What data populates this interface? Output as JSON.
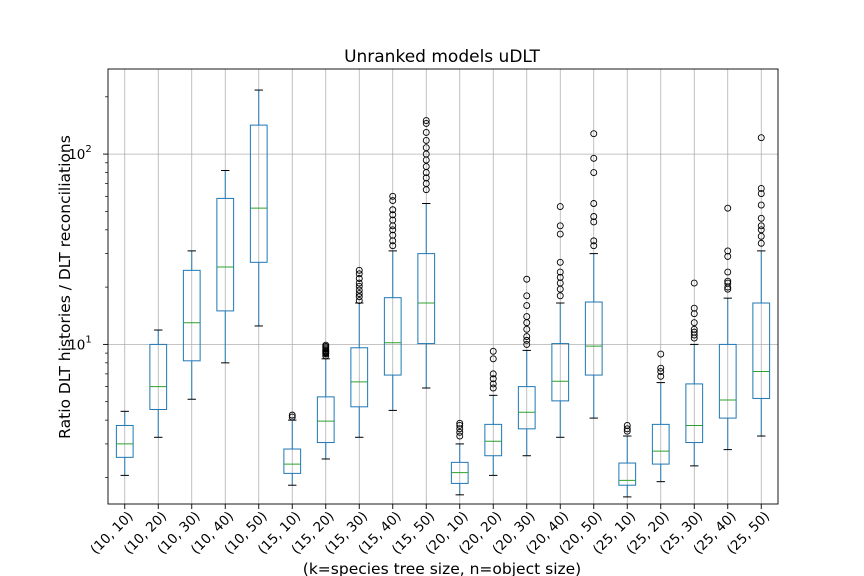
{
  "chart_data": {
    "type": "boxplot",
    "title": "Unranked models uDLT",
    "ylabel": "Ratio DLT histories / DLT reconciliations",
    "xlabel": "(k=species tree size, n=object size)",
    "yscale": "log",
    "ylim": [
      1.45,
      280
    ],
    "yticks": [
      {
        "value": 10,
        "base": "10",
        "exp": "1"
      },
      {
        "value": 100,
        "base": "10",
        "exp": "2"
      }
    ],
    "grid": true,
    "colors": {
      "box": "#1f77b4",
      "median": "#2ca02c",
      "grid": "#b0b0b0"
    },
    "categories": [
      "(10, 10)",
      "(10, 20)",
      "(10, 30)",
      "(10, 40)",
      "(10, 50)",
      "(15, 10)",
      "(15, 20)",
      "(15, 30)",
      "(15, 40)",
      "(15, 50)",
      "(20, 10)",
      "(20, 20)",
      "(20, 30)",
      "(20, 40)",
      "(20, 50)",
      "(25, 10)",
      "(25, 20)",
      "(25, 30)",
      "(25, 40)",
      "(25, 50)"
    ],
    "boxes": [
      {
        "whislo": 2.05,
        "q1": 2.55,
        "med": 3.0,
        "q3": 3.75,
        "whishi": 4.45,
        "fliers": []
      },
      {
        "whislo": 3.25,
        "q1": 4.55,
        "med": 6.0,
        "q3": 10.0,
        "whishi": 11.9,
        "fliers": []
      },
      {
        "whislo": 5.15,
        "q1": 8.2,
        "med": 13.0,
        "q3": 24.5,
        "whishi": 31.0,
        "fliers": []
      },
      {
        "whislo": 8.0,
        "q1": 15.0,
        "med": 25.5,
        "q3": 58.5,
        "whishi": 82.0,
        "fliers": []
      },
      {
        "whislo": 12.5,
        "q1": 27.0,
        "med": 52.0,
        "q3": 142.0,
        "whishi": 217.0,
        "fliers": []
      },
      {
        "whislo": 1.82,
        "q1": 2.1,
        "med": 2.35,
        "q3": 2.82,
        "whishi": 4.0,
        "fliers": [
          4.15,
          4.25
        ]
      },
      {
        "whislo": 2.5,
        "q1": 3.05,
        "med": 3.95,
        "q3": 5.3,
        "whishi": 8.4,
        "fliers": [
          8.7,
          8.9,
          9.0,
          9.1,
          9.2,
          9.3,
          9.45,
          9.6,
          9.75,
          9.9
        ]
      },
      {
        "whislo": 3.25,
        "q1": 4.7,
        "med": 6.35,
        "q3": 9.6,
        "whishi": 16.5,
        "fliers": [
          17.0,
          17.8,
          18.5,
          19.3,
          20.2,
          21.0,
          22.2,
          23.5,
          24.5
        ]
      },
      {
        "whislo": 4.5,
        "q1": 6.9,
        "med": 10.2,
        "q3": 17.6,
        "whishi": 31.0,
        "fliers": [
          33.0,
          35.0,
          37.5,
          40.0,
          42.0,
          45.0,
          48.0,
          51.0,
          57.0,
          60.0
        ]
      },
      {
        "whislo": 5.9,
        "q1": 10.1,
        "med": 16.5,
        "q3": 30.0,
        "whishi": 55.0,
        "fliers": [
          65.0,
          70.0,
          75.0,
          80.0,
          86.0,
          93.0,
          100.0,
          108.0,
          118.0,
          130.0,
          145.0,
          150.0
        ]
      },
      {
        "whislo": 1.62,
        "q1": 1.86,
        "med": 2.12,
        "q3": 2.4,
        "whishi": 3.0,
        "fliers": [
          3.3,
          3.45,
          3.6,
          3.75,
          3.85
        ]
      },
      {
        "whislo": 2.05,
        "q1": 2.6,
        "med": 3.1,
        "q3": 3.8,
        "whishi": 5.4,
        "fliers": [
          5.9,
          6.2,
          6.6,
          7.0,
          8.4,
          9.2
        ]
      },
      {
        "whislo": 2.6,
        "q1": 3.6,
        "med": 4.4,
        "q3": 6.0,
        "whishi": 9.3,
        "fliers": [
          10.0,
          10.5,
          11.0,
          12.0,
          13.0,
          14.0,
          16.0,
          18.0,
          22.0
        ]
      },
      {
        "whislo": 3.25,
        "q1": 5.05,
        "med": 6.4,
        "q3": 10.1,
        "whishi": 16.5,
        "fliers": [
          18.0,
          19.5,
          21.0,
          22.5,
          24.0,
          27.0,
          38.0,
          42.0,
          53.0
        ]
      },
      {
        "whislo": 4.1,
        "q1": 6.9,
        "med": 9.8,
        "q3": 16.7,
        "whishi": 30.0,
        "fliers": [
          33.0,
          35.0,
          44.0,
          47.0,
          55.0,
          80.0,
          95.0,
          128.0
        ]
      },
      {
        "whislo": 1.58,
        "q1": 1.82,
        "med": 1.93,
        "q3": 2.38,
        "whishi": 3.3,
        "fliers": [
          3.5,
          3.6,
          3.75
        ]
      },
      {
        "whislo": 1.9,
        "q1": 2.35,
        "med": 2.75,
        "q3": 3.8,
        "whishi": 6.3,
        "fliers": [
          6.8,
          7.2,
          7.5,
          8.9
        ]
      },
      {
        "whislo": 2.3,
        "q1": 3.05,
        "med": 3.75,
        "q3": 6.2,
        "whishi": 10.0,
        "fliers": [
          10.8,
          11.2,
          11.6,
          12.0,
          13.0,
          14.5,
          15.5,
          21.0
        ]
      },
      {
        "whislo": 2.8,
        "q1": 4.1,
        "med": 5.1,
        "q3": 10.0,
        "whishi": 17.5,
        "fliers": [
          19.5,
          20.0,
          21.0,
          21.5,
          24.0,
          29.0,
          31.0,
          52.0
        ]
      },
      {
        "whislo": 3.3,
        "q1": 5.2,
        "med": 7.2,
        "q3": 16.5,
        "whishi": 31.0,
        "fliers": [
          34.0,
          37.0,
          40.0,
          42.0,
          46.0,
          54.0,
          62.0,
          66.0,
          122.0
        ]
      }
    ]
  }
}
